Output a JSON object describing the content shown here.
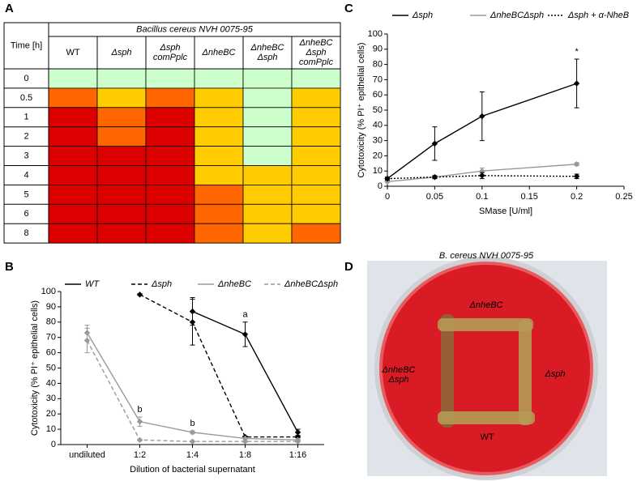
{
  "panel_labels": [
    "A",
    "B",
    "C",
    "D"
  ],
  "table_a": {
    "time_header": "Time [h]",
    "group_header": "Bacillus cereus NVH 0075-95",
    "columns": [
      [
        "WT"
      ],
      [
        "Δsph"
      ],
      [
        "Δsph",
        "comPplc"
      ],
      [
        "ΔnheBC"
      ],
      [
        "ΔnheBC",
        "Δsph"
      ],
      [
        "ΔnheBC",
        "Δsph",
        "comPplc"
      ]
    ],
    "rows": [
      {
        "time": 0,
        "cells": [
          "#ccffcc",
          "#ccffcc",
          "#ccffcc",
          "#ccffcc",
          "#ccffcc",
          "#ccffcc"
        ]
      },
      {
        "time": 0.5,
        "cells": [
          "#ff6600",
          "#ffcc00",
          "#ff6600",
          "#ffcc00",
          "#ccffcc",
          "#ffcc00"
        ]
      },
      {
        "time": 1,
        "cells": [
          "#dd0000",
          "#ff6600",
          "#dd0000",
          "#ffcc00",
          "#ccffcc",
          "#ffcc00"
        ]
      },
      {
        "time": 2,
        "cells": [
          "#dd0000",
          "#ff6600",
          "#dd0000",
          "#ffcc00",
          "#ccffcc",
          "#ffcc00"
        ]
      },
      {
        "time": 3,
        "cells": [
          "#dd0000",
          "#dd0000",
          "#dd0000",
          "#ffcc00",
          "#ccffcc",
          "#ffcc00"
        ]
      },
      {
        "time": 4,
        "cells": [
          "#dd0000",
          "#dd0000",
          "#dd0000",
          "#ffcc00",
          "#ffcc00",
          "#ffcc00"
        ]
      },
      {
        "time": 5,
        "cells": [
          "#dd0000",
          "#dd0000",
          "#dd0000",
          "#ff6600",
          "#ffcc00",
          "#ffcc00"
        ]
      },
      {
        "time": 6,
        "cells": [
          "#dd0000",
          "#dd0000",
          "#dd0000",
          "#ff6600",
          "#ffcc00",
          "#ffcc00"
        ]
      },
      {
        "time": 8,
        "cells": [
          "#dd0000",
          "#dd0000",
          "#dd0000",
          "#ff6600",
          "#ffcc00",
          "#ff6600"
        ]
      }
    ]
  },
  "chart_data": [
    {
      "type": "line",
      "y_label": "Cytotoxicity (% PI⁺ epithelial cells)",
      "x_label": "Dilution of bacterial supernatant",
      "categories": [
        "undiluted",
        "1:2",
        "1:4",
        "1:8",
        "1:16"
      ],
      "ylim": [
        0,
        100
      ],
      "yticks": [
        0,
        10,
        20,
        30,
        40,
        50,
        60,
        70,
        80,
        90,
        100
      ],
      "series": [
        {
          "name": "WT",
          "color": "#000000",
          "dash": "solid",
          "values": [
            null,
            null,
            87,
            72,
            8
          ],
          "errors": [
            null,
            null,
            9,
            8,
            2
          ]
        },
        {
          "name": "Δsph",
          "color": "#000000",
          "dash": "dashed",
          "values": [
            null,
            98,
            80,
            5,
            5
          ],
          "errors": [
            null,
            0.5,
            15,
            0.5,
            0.5
          ]
        },
        {
          "name": "ΔnheBC",
          "color": "#999999",
          "dash": "solid",
          "values": [
            73,
            15,
            8,
            4,
            3
          ],
          "errors": [
            5,
            3,
            1,
            0.5,
            0.5
          ]
        },
        {
          "name": "ΔnheBCΔsph",
          "color": "#999999",
          "dash": "dashed",
          "values": [
            68,
            3,
            2,
            2,
            2
          ],
          "errors": [
            8,
            0.5,
            0.5,
            0.5,
            0.5
          ]
        }
      ],
      "annotations": [
        "a",
        "b",
        "b"
      ]
    },
    {
      "type": "line",
      "y_label": "Cytotoxicity (% PI⁺ epithelial cells)",
      "x_label": "SMase [U/ml]",
      "x": [
        0,
        0.05,
        0.1,
        0.2
      ],
      "xlim": [
        0,
        0.25
      ],
      "xticks": [
        0,
        0.05,
        0.1,
        0.15,
        0.2,
        0.25
      ],
      "ylim": [
        0,
        100
      ],
      "yticks": [
        0,
        10,
        20,
        30,
        40,
        50,
        60,
        70,
        80,
        90,
        100
      ],
      "series": [
        {
          "name": "Δsph",
          "color": "#000000",
          "dash": "solid",
          "values": [
            5,
            28,
            46,
            67.5
          ],
          "errors": [
            1,
            11,
            16,
            16
          ]
        },
        {
          "name": "ΔnheBCΔsph",
          "color": "#999999",
          "dash": "solid",
          "values": [
            3,
            6,
            10,
            14.5
          ],
          "errors": [
            0.5,
            1,
            2,
            1
          ]
        },
        {
          "name": "Δsph + α-NheB",
          "color": "#000000",
          "dash": "dotted",
          "values": [
            5,
            6,
            7,
            6.5
          ],
          "errors": [
            1,
            1,
            2,
            1.5
          ]
        }
      ],
      "annotations": [
        "*"
      ]
    }
  ],
  "photo_d": {
    "title": "B. cereus NVH 0075-95",
    "labels": [
      [
        "ΔnheBC"
      ],
      [
        "ΔnheBC",
        "Δsph"
      ],
      [
        "Δsph"
      ],
      [
        "WT"
      ]
    ]
  }
}
